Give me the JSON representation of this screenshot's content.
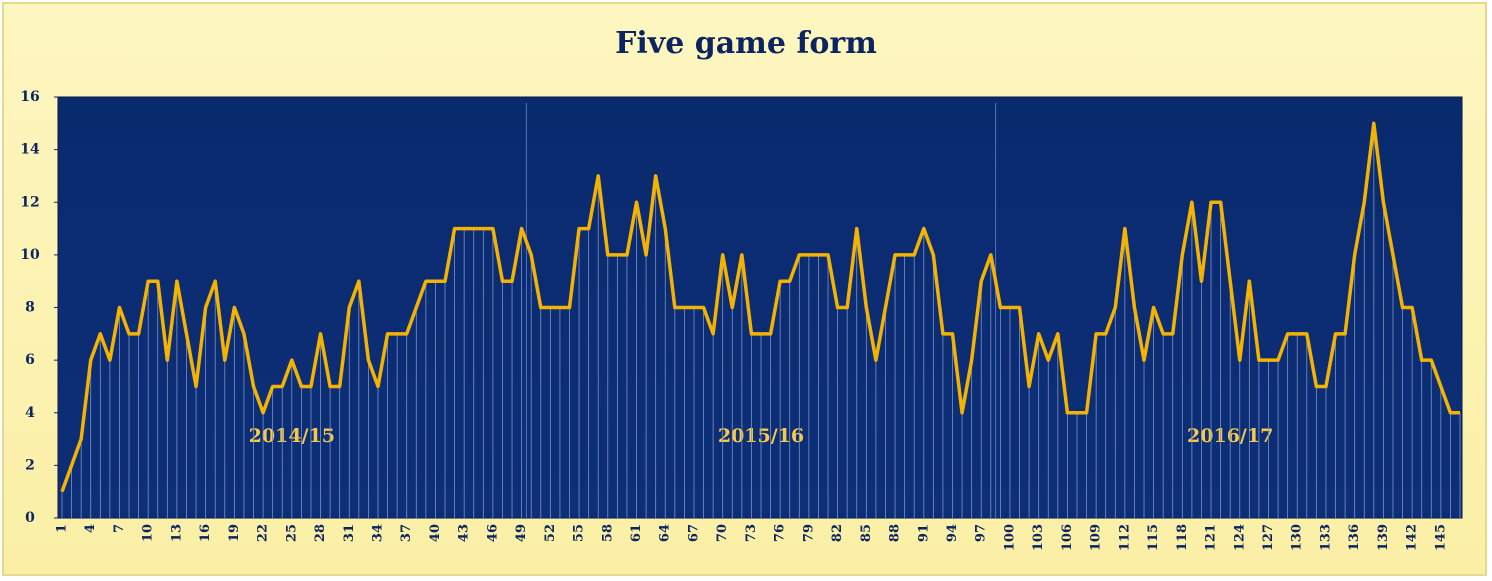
{
  "chart_data": {
    "type": "line",
    "title": "Five game form",
    "categories": [
      1,
      null,
      null,
      4,
      null,
      null,
      7,
      null,
      null,
      10,
      null,
      null,
      13,
      null,
      null,
      16,
      null,
      null,
      19,
      null,
      null,
      22,
      null,
      null,
      25,
      null,
      null,
      28,
      null,
      null,
      31,
      null,
      null,
      34,
      null,
      null,
      37,
      null,
      null,
      40,
      null,
      null,
      43,
      null,
      null,
      46,
      null,
      null,
      49,
      null,
      null,
      52,
      null,
      null,
      55,
      null,
      null,
      58,
      null,
      null,
      61,
      null,
      null,
      64,
      null,
      null,
      67,
      null,
      null,
      70,
      null,
      null,
      73,
      null,
      null,
      76,
      null,
      null,
      79,
      null,
      null,
      82,
      null,
      null,
      85,
      null,
      null,
      88,
      null,
      null,
      91,
      null,
      null,
      94,
      null,
      null,
      97,
      null,
      null,
      100,
      null,
      null,
      103,
      null,
      null,
      106,
      null,
      null,
      109,
      null,
      null,
      112,
      null,
      null,
      115,
      null,
      null,
      118,
      null,
      null,
      121,
      null,
      null,
      124,
      null,
      null,
      127,
      null,
      null,
      130,
      null,
      null,
      133,
      null,
      null,
      136,
      null,
      null,
      139,
      null,
      null,
      142,
      null,
      null,
      145,
      null,
      null
    ],
    "series": [
      {
        "color": "#f5b301",
        "values": [
          1,
          2,
          3,
          6,
          7,
          6,
          8,
          7,
          7,
          9,
          9,
          6,
          9,
          7,
          5,
          8,
          9,
          6,
          8,
          7,
          5,
          4,
          5,
          5,
          6,
          5,
          5,
          7,
          5,
          5,
          8,
          9,
          6,
          5,
          7,
          7,
          7,
          8,
          9,
          9,
          9,
          11,
          11,
          11,
          11,
          11,
          9,
          9,
          11,
          10,
          8,
          8,
          8,
          8,
          11,
          11,
          13,
          10,
          10,
          10,
          12,
          10,
          13,
          11,
          8,
          8,
          8,
          8,
          7,
          10,
          8,
          10,
          7,
          7,
          7,
          9,
          9,
          10,
          10,
          10,
          10,
          8,
          8,
          11,
          8,
          6,
          8,
          10,
          10,
          10,
          11,
          10,
          7,
          7,
          4,
          6,
          9,
          10,
          8,
          8,
          8,
          5,
          7,
          6,
          7,
          4,
          4,
          4,
          7,
          7,
          8,
          11,
          8,
          6,
          8,
          7,
          7,
          10,
          12,
          9,
          12,
          12,
          9,
          6,
          9,
          6,
          6,
          6,
          7,
          7,
          7,
          5,
          5,
          7,
          7,
          10,
          12,
          15,
          12,
          10,
          8,
          8,
          6,
          6,
          5,
          4,
          4
        ]
      }
    ],
    "annotations": [
      "2014/15",
      "2015/16",
      "2016/17"
    ],
    "ylim": [
      0,
      16
    ],
    "yticks": [
      0,
      2,
      4,
      6,
      8,
      10,
      12,
      14,
      16
    ],
    "grid": false,
    "drop_lines": true
  }
}
